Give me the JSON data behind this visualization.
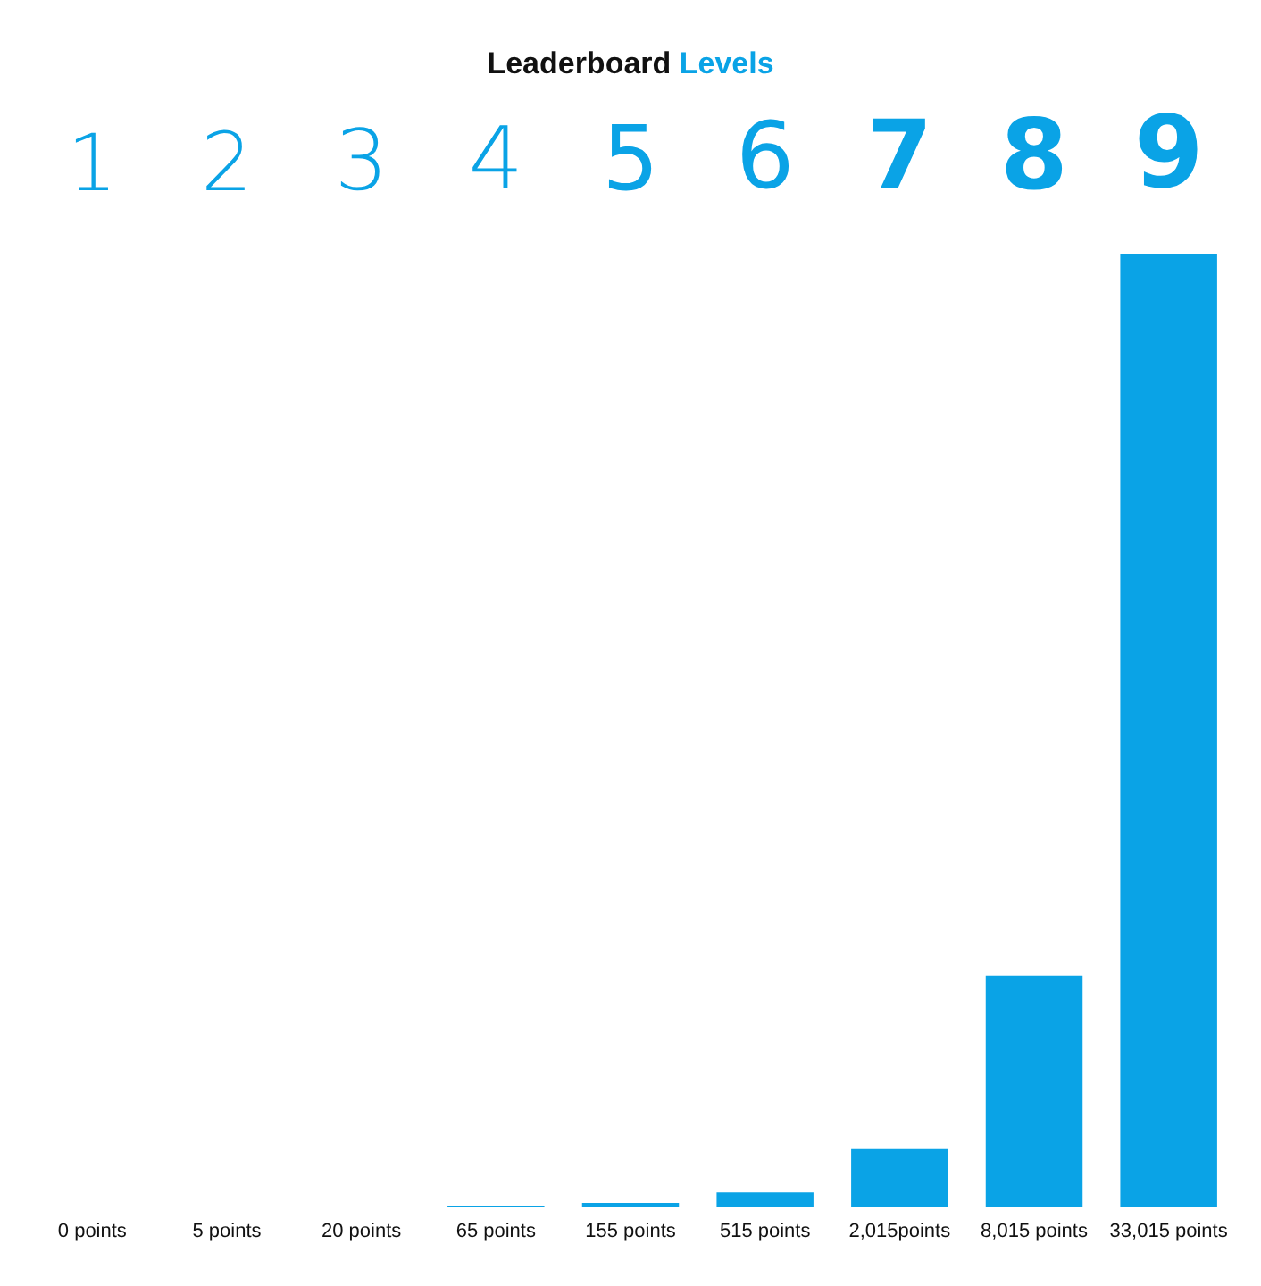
{
  "chart_data": {
    "type": "bar",
    "title": "Leaderboard Levels",
    "categories": [
      "1",
      "2",
      "3",
      "4",
      "5",
      "6",
      "7",
      "8",
      "9"
    ],
    "values": [
      0,
      5,
      20,
      65,
      155,
      515,
      2015,
      8015,
      33015
    ],
    "value_labels": [
      "0 points",
      "5 points",
      "20 points",
      "65 points",
      "155 points",
      "515 points",
      "2,015points",
      "8,015 points",
      "33,015 points"
    ],
    "color": "#0aa3e6",
    "tick_labels": "x"
  }
}
